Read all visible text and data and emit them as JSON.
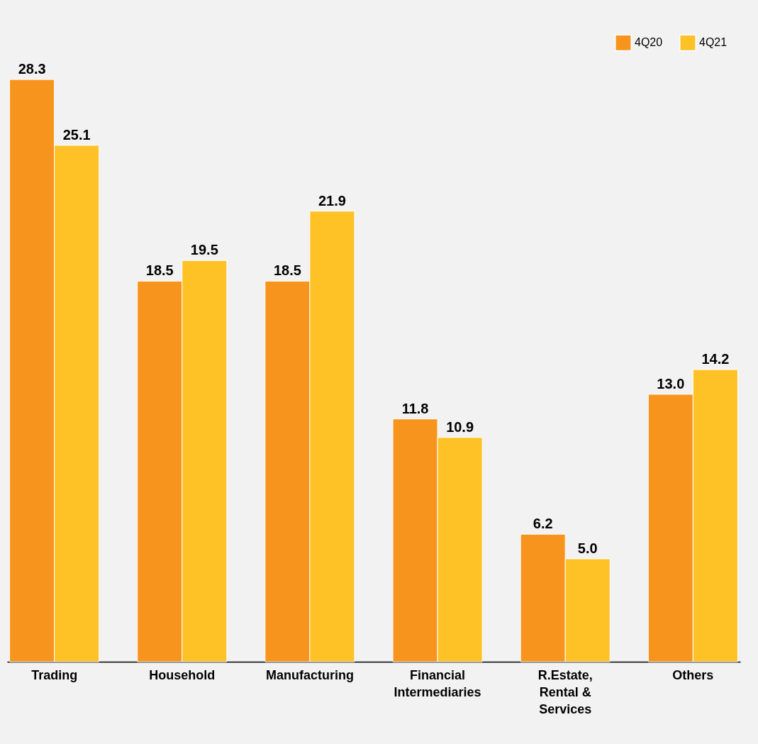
{
  "chart_data": {
    "type": "bar",
    "categories": [
      "Trading",
      "Household",
      "Manufacturing",
      "Financial\nIntermediaries",
      "R.Estate,\nRental &\nServices",
      "Others"
    ],
    "series": [
      {
        "name": "4Q20",
        "color": "#f7941d",
        "values": [
          28.3,
          18.5,
          18.5,
          11.8,
          6.2,
          13.0
        ],
        "value_labels": [
          "28.3",
          "18.5",
          "18.5",
          "11.8",
          "6.2",
          "13.0"
        ]
      },
      {
        "name": "4Q21",
        "color": "#fec126",
        "values": [
          25.1,
          19.5,
          21.9,
          10.9,
          5.0,
          14.2
        ],
        "value_labels": [
          "25.1",
          "19.5",
          "21.9",
          "10.9",
          "5.0",
          "14.2"
        ]
      }
    ],
    "legend": "top right"
  }
}
